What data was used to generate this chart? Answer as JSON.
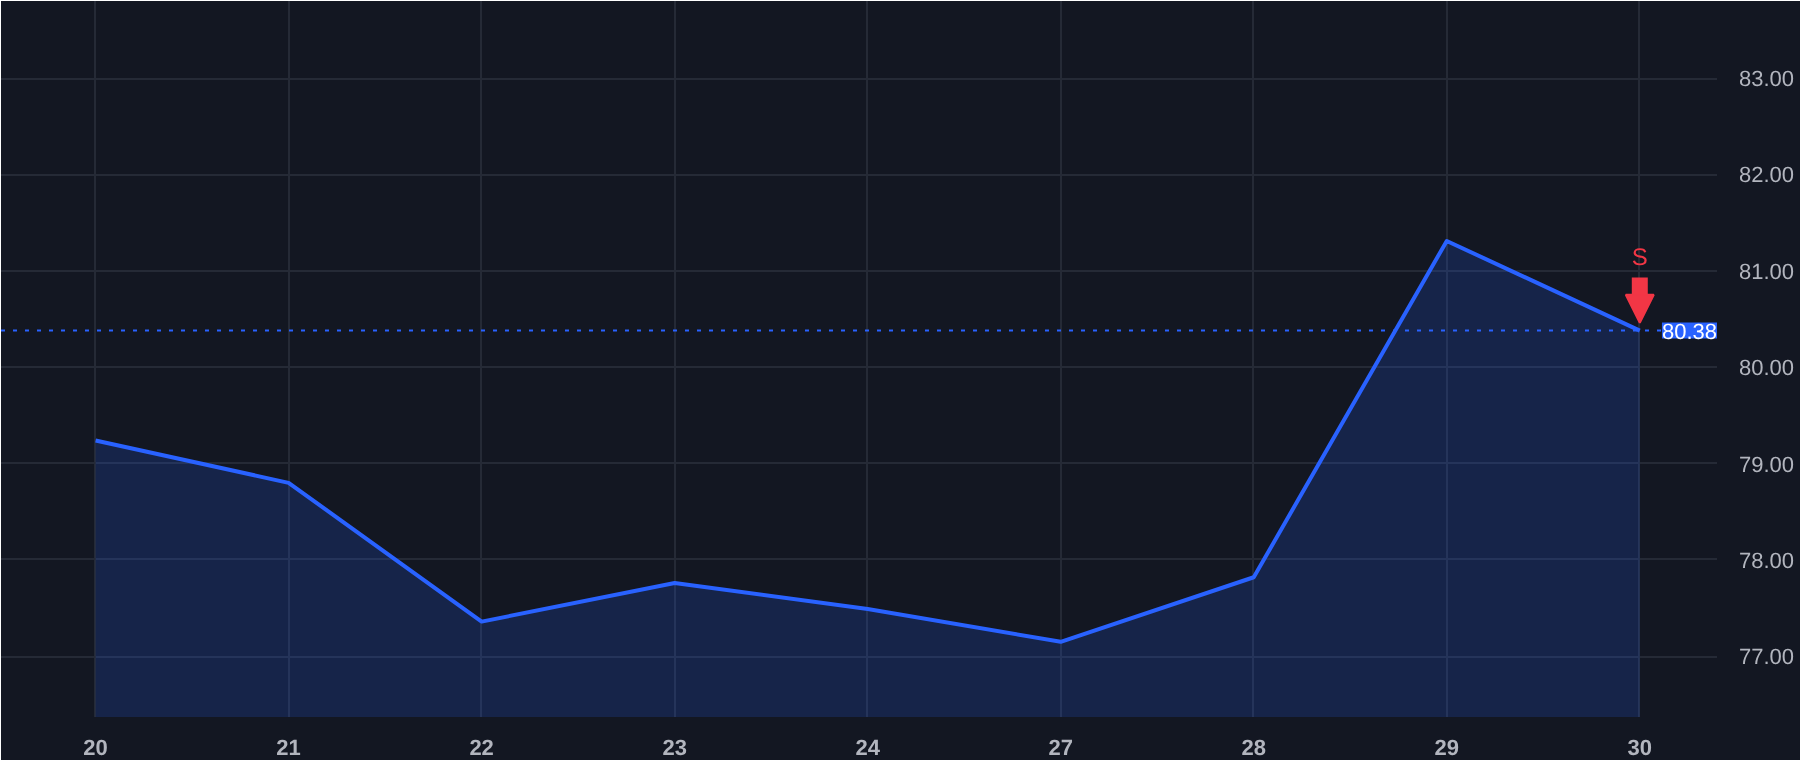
{
  "chart_data": {
    "type": "area",
    "categories": [
      "20",
      "21",
      "22",
      "23",
      "24",
      "27",
      "28",
      "29",
      "30"
    ],
    "series": [
      {
        "color": "#2962ff",
        "values": [
          79.24,
          78.8,
          77.36,
          77.76,
          77.49,
          77.15,
          77.82,
          81.31,
          80.38
        ]
      }
    ],
    "ylim": [
      76.37,
      83.8
    ],
    "yticks": [
      {
        "value": 77,
        "label": "77.00"
      },
      {
        "value": 78,
        "label": "78.00"
      },
      {
        "value": 79,
        "label": "79.00"
      },
      {
        "value": 80,
        "label": "80.00"
      },
      {
        "value": 81,
        "label": "81.00"
      },
      {
        "value": 82,
        "label": "82.00"
      },
      {
        "value": 83,
        "label": "83.00"
      }
    ],
    "ref_lines": [
      {
        "axis": "y",
        "value": 80.38,
        "label": "80.38",
        "color": "#2962ff",
        "line_style": "dotted"
      }
    ],
    "annotations": [
      {
        "text": "S",
        "x": "30",
        "y": 80.38
      }
    ],
    "grid": true
  }
}
